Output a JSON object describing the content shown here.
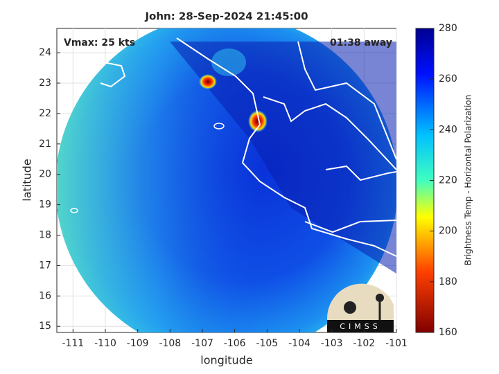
{
  "title": "John: 28-Sep-2024 21:45:00",
  "annotations": {
    "vmax": "Vmax: 25 kts",
    "time_away": "01:38 away"
  },
  "xlabel": "longitude",
  "ylabel": "latitude",
  "xlim": [
    -111.5,
    -101
  ],
  "ylim": [
    14.8,
    24.8
  ],
  "xticks": [
    -111,
    -110,
    -109,
    -108,
    -107,
    -106,
    -105,
    -104,
    -103,
    -102,
    -101
  ],
  "yticks": [
    15,
    16,
    17,
    18,
    19,
    20,
    21,
    22,
    23,
    24
  ],
  "grid": true,
  "colorbar": {
    "label": "Brightness Temp - Horizontal Polarization",
    "lim": [
      160,
      280
    ],
    "ticks": [
      160,
      180,
      200,
      220,
      240,
      260,
      280
    ]
  },
  "logo": "CIMSS"
}
